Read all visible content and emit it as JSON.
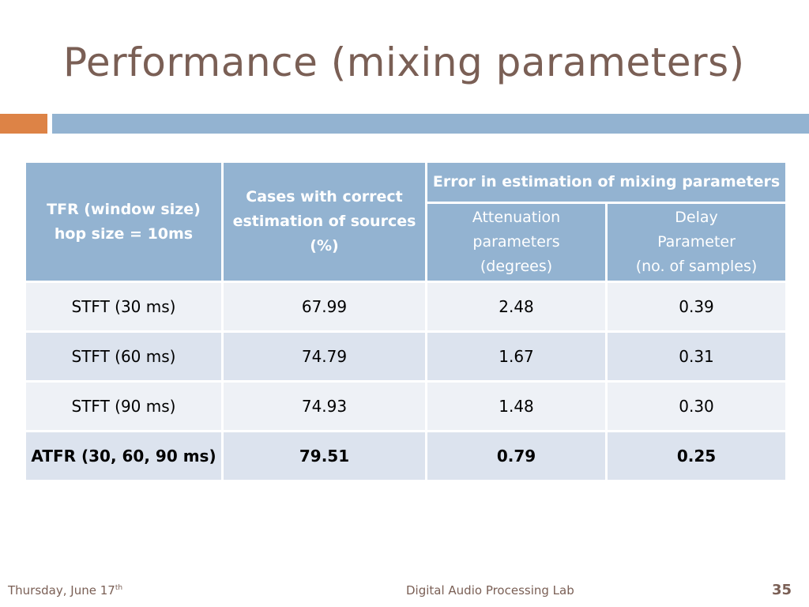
{
  "slide": {
    "title": "Performance (mixing parameters)"
  },
  "table": {
    "headers": {
      "tfr_line1": "TFR (window size)",
      "tfr_line2": "hop size = 10ms",
      "cases_line1": "Cases with correct",
      "cases_line2": "estimation of sources",
      "cases_line3": "(%)",
      "error_group": "Error in estimation of mixing parameters",
      "atten_line1": "Attenuation",
      "atten_line2": "parameters",
      "atten_line3": "(degrees)",
      "delay_line1": "Delay",
      "delay_line2": "Parameter",
      "delay_line3": "(no. of samples)"
    },
    "rows": [
      {
        "tfr": "STFT (30 ms)",
        "cases": "67.99",
        "atten": "2.48",
        "delay": "0.39"
      },
      {
        "tfr": "STFT (60 ms)",
        "cases": "74.79",
        "atten": "1.67",
        "delay": "0.31"
      },
      {
        "tfr": "STFT (90 ms)",
        "cases": "74.93",
        "atten": "1.48",
        "delay": "0.30"
      },
      {
        "tfr": "ATFR (30, 60, 90 ms)",
        "cases": "79.51",
        "atten": "0.79",
        "delay": "0.25"
      }
    ]
  },
  "footer": {
    "date_text": "Thursday, June 17",
    "date_sup": "th",
    "lab": "Digital Audio Processing Lab",
    "page_number": "35"
  },
  "colors": {
    "title": "#7a5f55",
    "header_bg": "#93b3d1",
    "accent_orange": "#dd8346",
    "row_light": "#eef1f6",
    "row_dark": "#dce3ee"
  }
}
